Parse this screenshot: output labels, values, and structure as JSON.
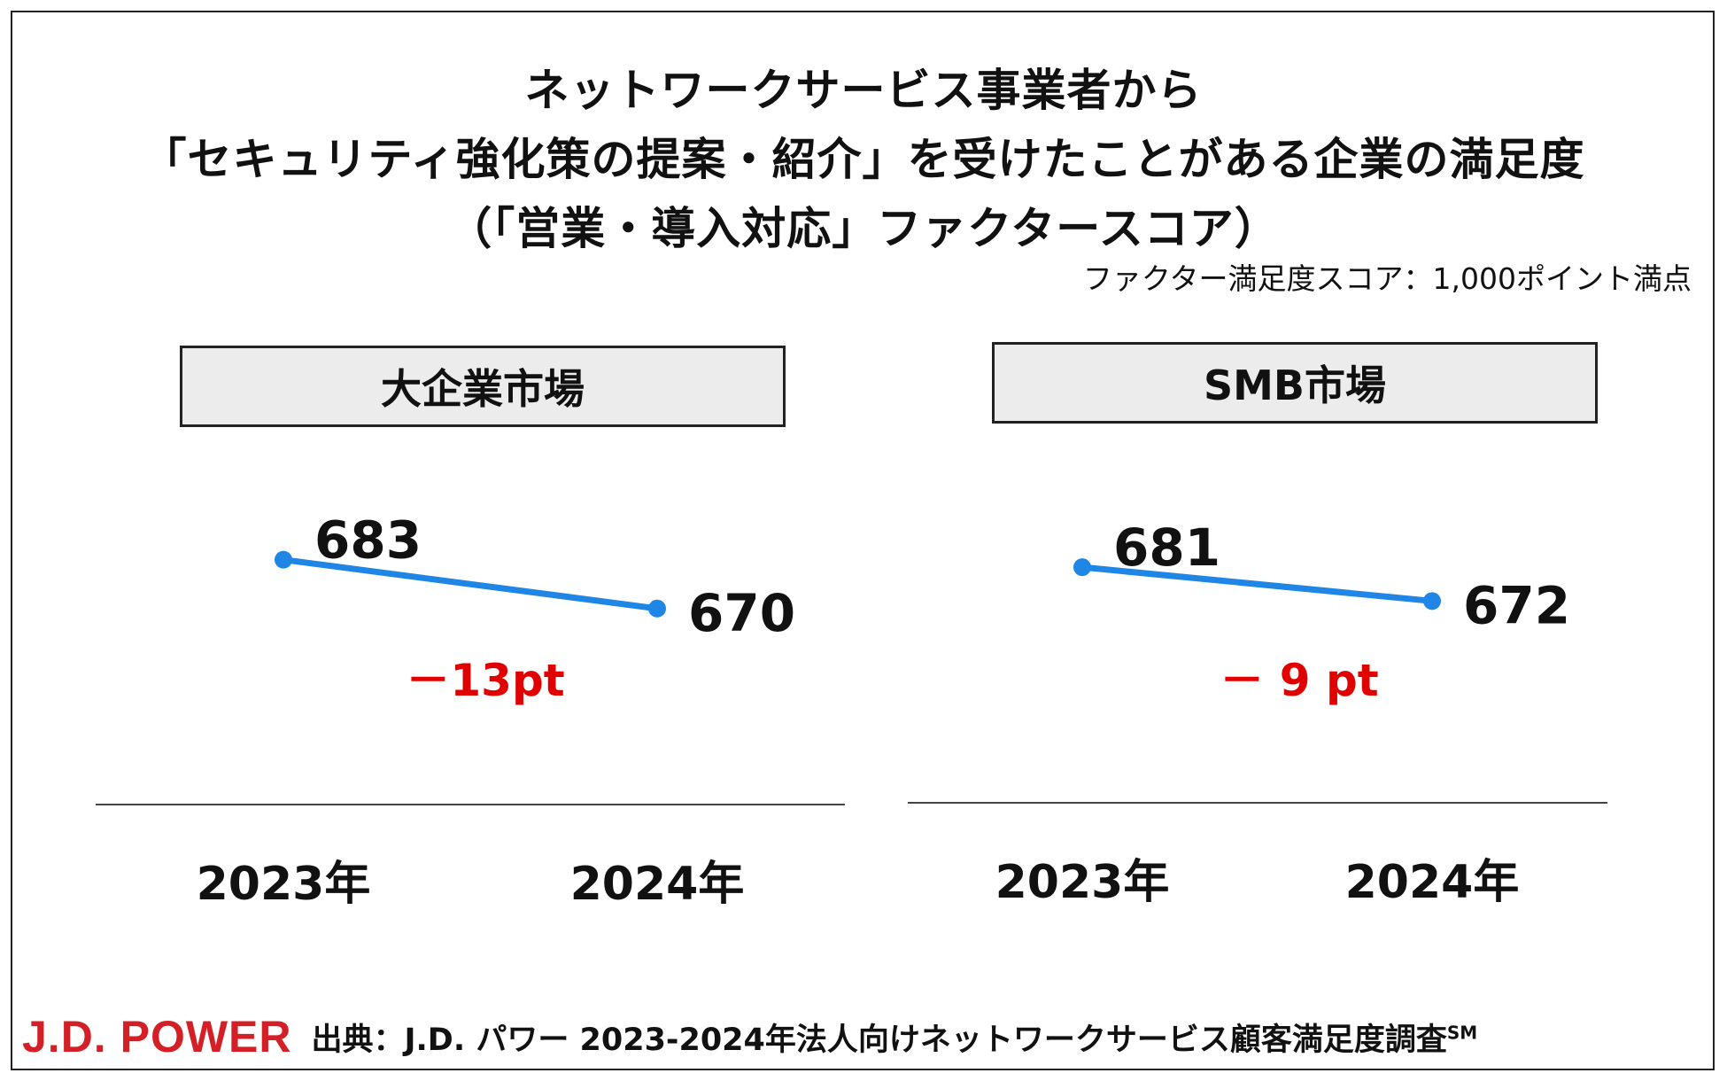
{
  "title": {
    "line1": "ネットワークサービス事業者から",
    "line2": "「セキュリティ強化策の提案・紹介」を受けたことがある企業の満足度",
    "line3": "（「営業・導入対応」ファクタースコア）"
  },
  "scale_note": "ファクター満足度スコア：1,000ポイント満点",
  "colors": {
    "line": "#1f86e6",
    "diff": "#e10000",
    "brand": "#d41f26"
  },
  "chart_data": [
    {
      "type": "line",
      "title": "大企業市場",
      "categories": [
        "2023年",
        "2024年"
      ],
      "values": [
        683,
        670
      ],
      "value_labels": [
        "683",
        "670"
      ],
      "change_label": "－13pt",
      "ylim": [
        650,
        700
      ]
    },
    {
      "type": "line",
      "title": "SMB市場",
      "categories": [
        "2023年",
        "2024年"
      ],
      "values": [
        681,
        672
      ],
      "value_labels": [
        "681",
        "672"
      ],
      "change_label": "－ 9 pt",
      "ylim": [
        650,
        700
      ]
    }
  ],
  "footer": {
    "brand": "J.D. POWER",
    "source": "出典：J.D. パワー 2023-2024年法人向けネットワークサービス顧客満足度調査",
    "source_mark": "SM"
  }
}
